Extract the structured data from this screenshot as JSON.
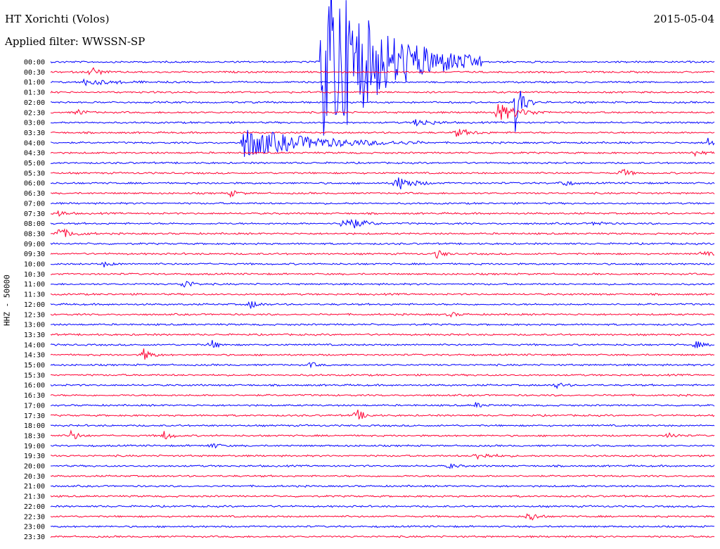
{
  "header": {
    "station": "HT Xorichti (Volos)",
    "date": "2015-05-04",
    "filter": "Applied filter: WWSSN-SP"
  },
  "colors": {
    "odd_trace": "#0000ff",
    "even_trace": "#ff0033",
    "background": "#ffffff"
  },
  "chart_data": {
    "type": "line",
    "title": "HT Xorichti (Volos)",
    "ylabel": "HHZ - 50000",
    "xlabel": "",
    "grid": false,
    "row_labels": [
      "00:00",
      "00:30",
      "01:00",
      "01:30",
      "02:00",
      "02:30",
      "03:00",
      "03:30",
      "04:00",
      "04:30",
      "05:00",
      "05:30",
      "06:00",
      "06:30",
      "07:00",
      "07:30",
      "08:00",
      "08:30",
      "09:00",
      "09:30",
      "10:00",
      "10:30",
      "11:00",
      "11:30",
      "12:00",
      "12:30",
      "13:00",
      "13:30",
      "14:00",
      "14:30",
      "15:00",
      "15:30",
      "16:00",
      "16:30",
      "17:00",
      "17:30",
      "18:00",
      "18:30",
      "19:00",
      "19:30",
      "20:00",
      "20:30",
      "21:00",
      "21:30",
      "22:00",
      "22:30",
      "23:00",
      "23:30"
    ],
    "row_minutes": 30,
    "events": [
      {
        "row": 0,
        "t": 0.41,
        "amp": 140,
        "dur": 0.08
      },
      {
        "row": 1,
        "t": 0.06,
        "amp": 10,
        "dur": 0.01
      },
      {
        "row": 2,
        "t": 0.05,
        "amp": 4,
        "dur": 0.04
      },
      {
        "row": 4,
        "t": 0.7,
        "amp": 42,
        "dur": 0.01
      },
      {
        "row": 5,
        "t": 0.04,
        "amp": 5,
        "dur": 0.01
      },
      {
        "row": 5,
        "t": 0.67,
        "amp": 14,
        "dur": 0.03
      },
      {
        "row": 6,
        "t": 0.55,
        "amp": 6,
        "dur": 0.02
      },
      {
        "row": 7,
        "t": 0.61,
        "amp": 6,
        "dur": 0.02
      },
      {
        "row": 8,
        "t": 0.29,
        "amp": 22,
        "dur": 0.09
      },
      {
        "row": 8,
        "t": 0.99,
        "amp": 8,
        "dur": 0.01
      },
      {
        "row": 9,
        "t": 0.97,
        "amp": 5,
        "dur": 0.01
      },
      {
        "row": 11,
        "t": 0.86,
        "amp": 7,
        "dur": 0.01
      },
      {
        "row": 12,
        "t": 0.52,
        "amp": 12,
        "dur": 0.02
      },
      {
        "row": 12,
        "t": 0.77,
        "amp": 6,
        "dur": 0.01
      },
      {
        "row": 13,
        "t": 0.27,
        "amp": 5,
        "dur": 0.01
      },
      {
        "row": 15,
        "t": 0.01,
        "amp": 5,
        "dur": 0.01
      },
      {
        "row": 16,
        "t": 0.44,
        "amp": 14,
        "dur": 0.02
      },
      {
        "row": 16,
        "t": 0.82,
        "amp": 5,
        "dur": 0.01
      },
      {
        "row": 17,
        "t": 0.01,
        "amp": 8,
        "dur": 0.02
      },
      {
        "row": 19,
        "t": 0.58,
        "amp": 7,
        "dur": 0.01
      },
      {
        "row": 19,
        "t": 0.98,
        "amp": 5,
        "dur": 0.01
      },
      {
        "row": 20,
        "t": 0.08,
        "amp": 4,
        "dur": 0.01
      },
      {
        "row": 22,
        "t": 0.2,
        "amp": 8,
        "dur": 0.01
      },
      {
        "row": 24,
        "t": 0.3,
        "amp": 7,
        "dur": 0.01
      },
      {
        "row": 25,
        "t": 0.6,
        "amp": 4,
        "dur": 0.01
      },
      {
        "row": 28,
        "t": 0.24,
        "amp": 8,
        "dur": 0.01
      },
      {
        "row": 28,
        "t": 0.97,
        "amp": 6,
        "dur": 0.01
      },
      {
        "row": 29,
        "t": 0.14,
        "amp": 9,
        "dur": 0.01
      },
      {
        "row": 30,
        "t": 0.39,
        "amp": 4,
        "dur": 0.01
      },
      {
        "row": 32,
        "t": 0.76,
        "amp": 5,
        "dur": 0.01
      },
      {
        "row": 34,
        "t": 0.64,
        "amp": 4,
        "dur": 0.01
      },
      {
        "row": 35,
        "t": 0.46,
        "amp": 10,
        "dur": 0.01
      },
      {
        "row": 37,
        "t": 0.03,
        "amp": 8,
        "dur": 0.01
      },
      {
        "row": 37,
        "t": 0.17,
        "amp": 7,
        "dur": 0.01
      },
      {
        "row": 37,
        "t": 0.93,
        "amp": 5,
        "dur": 0.01
      },
      {
        "row": 38,
        "t": 0.24,
        "amp": 5,
        "dur": 0.01
      },
      {
        "row": 39,
        "t": 0.64,
        "amp": 5,
        "dur": 0.02
      },
      {
        "row": 40,
        "t": 0.6,
        "amp": 4,
        "dur": 0.01
      },
      {
        "row": 45,
        "t": 0.72,
        "amp": 9,
        "dur": 0.01
      }
    ]
  }
}
